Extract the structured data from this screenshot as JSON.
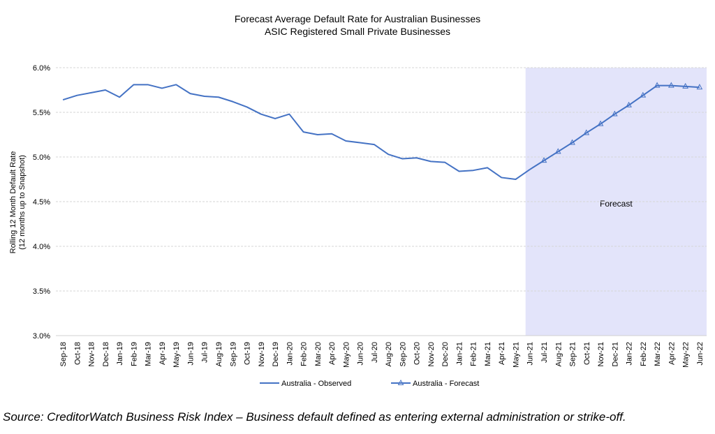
{
  "chart_data": {
    "type": "line",
    "title": "Forecast Average Default Rate for Australian Businesses",
    "subtitle": "ASIC Registered Small Private Businesses",
    "ylabel": [
      "Rolling 12 Month Default Rate",
      "(12 months up to Snapshot)"
    ],
    "xlabel": "",
    "ylim": [
      3.0,
      6.0
    ],
    "yticks": [
      "3.0%",
      "3.5%",
      "4.0%",
      "4.5%",
      "5.0%",
      "5.5%",
      "6.0%"
    ],
    "ytick_values": [
      3.0,
      3.5,
      4.0,
      4.5,
      5.0,
      5.5,
      6.0
    ],
    "grid": "horizontal dashed",
    "legend_position": "bottom",
    "categories": [
      "Sep-18",
      "Oct-18",
      "Nov-18",
      "Dec-18",
      "Jan-19",
      "Feb-19",
      "Mar-19",
      "Apr-19",
      "May-19",
      "Jun-19",
      "Jul-19",
      "Aug-19",
      "Sep-19",
      "Oct-19",
      "Nov-19",
      "Dec-19",
      "Jan-20",
      "Feb-20",
      "Mar-20",
      "Apr-20",
      "May-20",
      "Jun-20",
      "Jul-20",
      "Aug-20",
      "Sep-20",
      "Oct-20",
      "Nov-20",
      "Dec-20",
      "Jan-21",
      "Feb-21",
      "Mar-21",
      "Apr-21",
      "May-21",
      "Jun-21",
      "Jul-21",
      "Aug-21",
      "Sep-21",
      "Oct-21",
      "Nov-21",
      "Dec-21",
      "Jan-22",
      "Feb-22",
      "Mar-22",
      "Apr-22",
      "May-22",
      "Jun-22"
    ],
    "series": [
      {
        "name": "Australia - Observed",
        "marker": "none",
        "color": "#4472C4",
        "values": [
          5.64,
          5.69,
          5.72,
          5.75,
          5.67,
          5.81,
          5.81,
          5.77,
          5.81,
          5.71,
          5.68,
          5.67,
          5.62,
          5.56,
          5.48,
          5.43,
          5.48,
          5.28,
          5.25,
          5.26,
          5.18,
          5.16,
          5.14,
          5.03,
          4.98,
          4.99,
          4.95,
          4.94,
          4.84,
          4.85,
          4.88,
          4.77,
          4.75,
          4.86,
          null,
          null,
          null,
          null,
          null,
          null,
          null,
          null,
          null,
          null,
          null,
          null
        ]
      },
      {
        "name": "Australia - Forecast",
        "marker": "triangle",
        "color": "#4472C4",
        "values": [
          null,
          null,
          null,
          null,
          null,
          null,
          null,
          null,
          null,
          null,
          null,
          null,
          null,
          null,
          null,
          null,
          null,
          null,
          null,
          null,
          null,
          null,
          null,
          null,
          null,
          null,
          null,
          null,
          null,
          null,
          null,
          null,
          null,
          4.86,
          4.96,
          5.06,
          5.16,
          5.27,
          5.37,
          5.48,
          5.58,
          5.69,
          5.8,
          5.8,
          5.79,
          5.78
        ]
      }
    ],
    "annotations": [
      {
        "text": "Forecast",
        "region_start": "Jun-21",
        "region_end": "Jun-22",
        "fill": "#E3E4FA"
      }
    ]
  },
  "source": "Source: CreditorWatch Business Risk Index – Business default defined as entering external administration or strike-off."
}
